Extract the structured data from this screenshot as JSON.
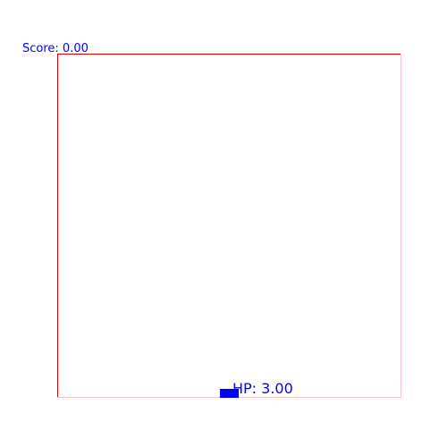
{
  "hud": {
    "score_text": "Score: 0.00",
    "hp_text": "HP: 3.00"
  },
  "game": {
    "score": 0,
    "hp": 3
  },
  "colors": {
    "hud_text": "#0000ff",
    "player": "#0000ff",
    "arena_top": "#d40000",
    "arena_left": "#d40000",
    "arena_right": "#ffc0cb",
    "arena_bottom": "#ffc0cb",
    "background": "#ffffff"
  }
}
